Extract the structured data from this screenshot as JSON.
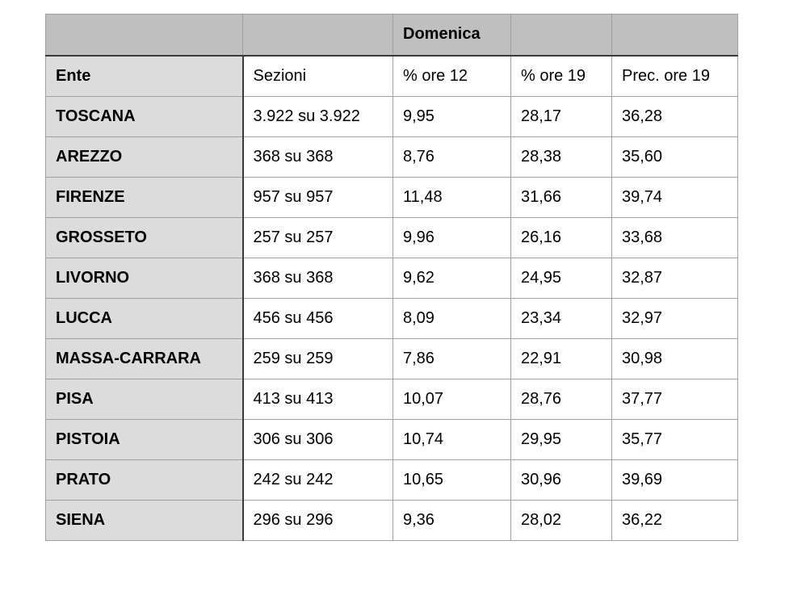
{
  "colors": {
    "page_bg": "#ffffff",
    "group_header_bg": "#bfbfbf",
    "first_col_bg": "#dcdcdc",
    "grid_border": "#a0a0a0",
    "dark_border": "#3a3a3a",
    "text_color": "#000000"
  },
  "table": {
    "group_header": {
      "domenica_label": "Domenica"
    },
    "columns": [
      {
        "key": "ente",
        "label": "Ente"
      },
      {
        "key": "sezioni",
        "label": "Sezioni"
      },
      {
        "key": "ore12",
        "label": "% ore 12"
      },
      {
        "key": "ore19",
        "label": "% ore 19"
      },
      {
        "key": "prec",
        "label": "Prec. ore 19"
      }
    ],
    "row_keys": [
      "ente",
      "sezioni",
      "ore12",
      "ore19",
      "prec"
    ],
    "rows": [
      {
        "ente": "TOSCANA",
        "sezioni": "3.922 su 3.922",
        "ore12": "9,95",
        "ore19": "28,17",
        "prec": "36,28"
      },
      {
        "ente": "AREZZO",
        "sezioni": "368 su 368",
        "ore12": "8,76",
        "ore19": "28,38",
        "prec": "35,60"
      },
      {
        "ente": "FIRENZE",
        "sezioni": "957 su 957",
        "ore12": "11,48",
        "ore19": "31,66",
        "prec": "39,74"
      },
      {
        "ente": "GROSSETO",
        "sezioni": "257 su 257",
        "ore12": "9,96",
        "ore19": "26,16",
        "prec": "33,68"
      },
      {
        "ente": "LIVORNO",
        "sezioni": "368 su 368",
        "ore12": "9,62",
        "ore19": "24,95",
        "prec": "32,87"
      },
      {
        "ente": "LUCCA",
        "sezioni": "456 su 456",
        "ore12": "8,09",
        "ore19": "23,34",
        "prec": "32,97"
      },
      {
        "ente": "MASSA-CARRARA",
        "sezioni": "259 su 259",
        "ore12": "7,86",
        "ore19": "22,91",
        "prec": "30,98"
      },
      {
        "ente": "PISA",
        "sezioni": "413 su 413",
        "ore12": "10,07",
        "ore19": "28,76",
        "prec": "37,77"
      },
      {
        "ente": "PISTOIA",
        "sezioni": "306 su 306",
        "ore12": "10,74",
        "ore19": "29,95",
        "prec": "35,77"
      },
      {
        "ente": "PRATO",
        "sezioni": "242 su 242",
        "ore12": "10,65",
        "ore19": "30,96",
        "prec": "39,69"
      },
      {
        "ente": "SIENA",
        "sezioni": "296 su 296",
        "ore12": "9,36",
        "ore19": "28,02",
        "prec": "36,22"
      }
    ]
  }
}
